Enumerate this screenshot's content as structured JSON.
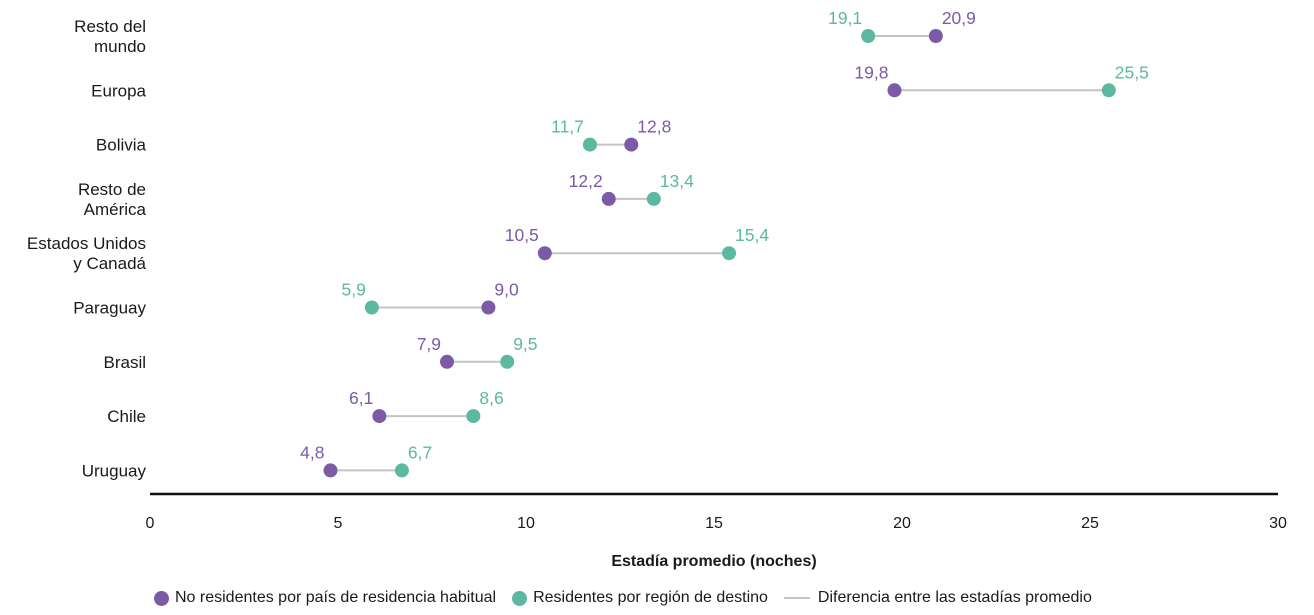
{
  "chart_data": {
    "type": "dot-range",
    "xlabel": "Estadía promedio (noches)",
    "xlim": [
      0,
      30
    ],
    "xticks": [
      "0",
      "5",
      "10",
      "15",
      "20",
      "25",
      "30"
    ],
    "categories": [
      [
        "Resto del",
        "mundo"
      ],
      [
        "Europa"
      ],
      [
        "Bolivia"
      ],
      [
        "Resto de",
        "América"
      ],
      [
        "Estados Unidos",
        "y Canadá"
      ],
      [
        "Paraguay"
      ],
      [
        "Brasil"
      ],
      [
        "Chile"
      ],
      [
        "Uruguay"
      ]
    ],
    "series": [
      {
        "name": "No residentes por país de residencia habitual",
        "color": "#7b5aa6",
        "values": [
          20.9,
          19.8,
          12.8,
          12.2,
          10.5,
          9.0,
          7.9,
          6.1,
          4.8
        ],
        "labels": [
          "20,9",
          "19,8",
          "12,8",
          "12,2",
          "10,5",
          "9,0",
          "7,9",
          "6,1",
          "4,8"
        ]
      },
      {
        "name": "Residentes por región de destino",
        "color": "#5cb8a0",
        "values": [
          19.1,
          25.5,
          11.7,
          13.4,
          15.4,
          5.9,
          9.5,
          8.6,
          6.7
        ],
        "labels": [
          "19,1",
          "25,5",
          "11,7",
          "13,4",
          "15,4",
          "5,9",
          "9,5",
          "8,6",
          "6,7"
        ]
      }
    ],
    "difference_line": {
      "name": "Diferencia entre las estadías promedio",
      "color": "#c4c4c8"
    },
    "legend_position": "bottom",
    "grid": false
  }
}
